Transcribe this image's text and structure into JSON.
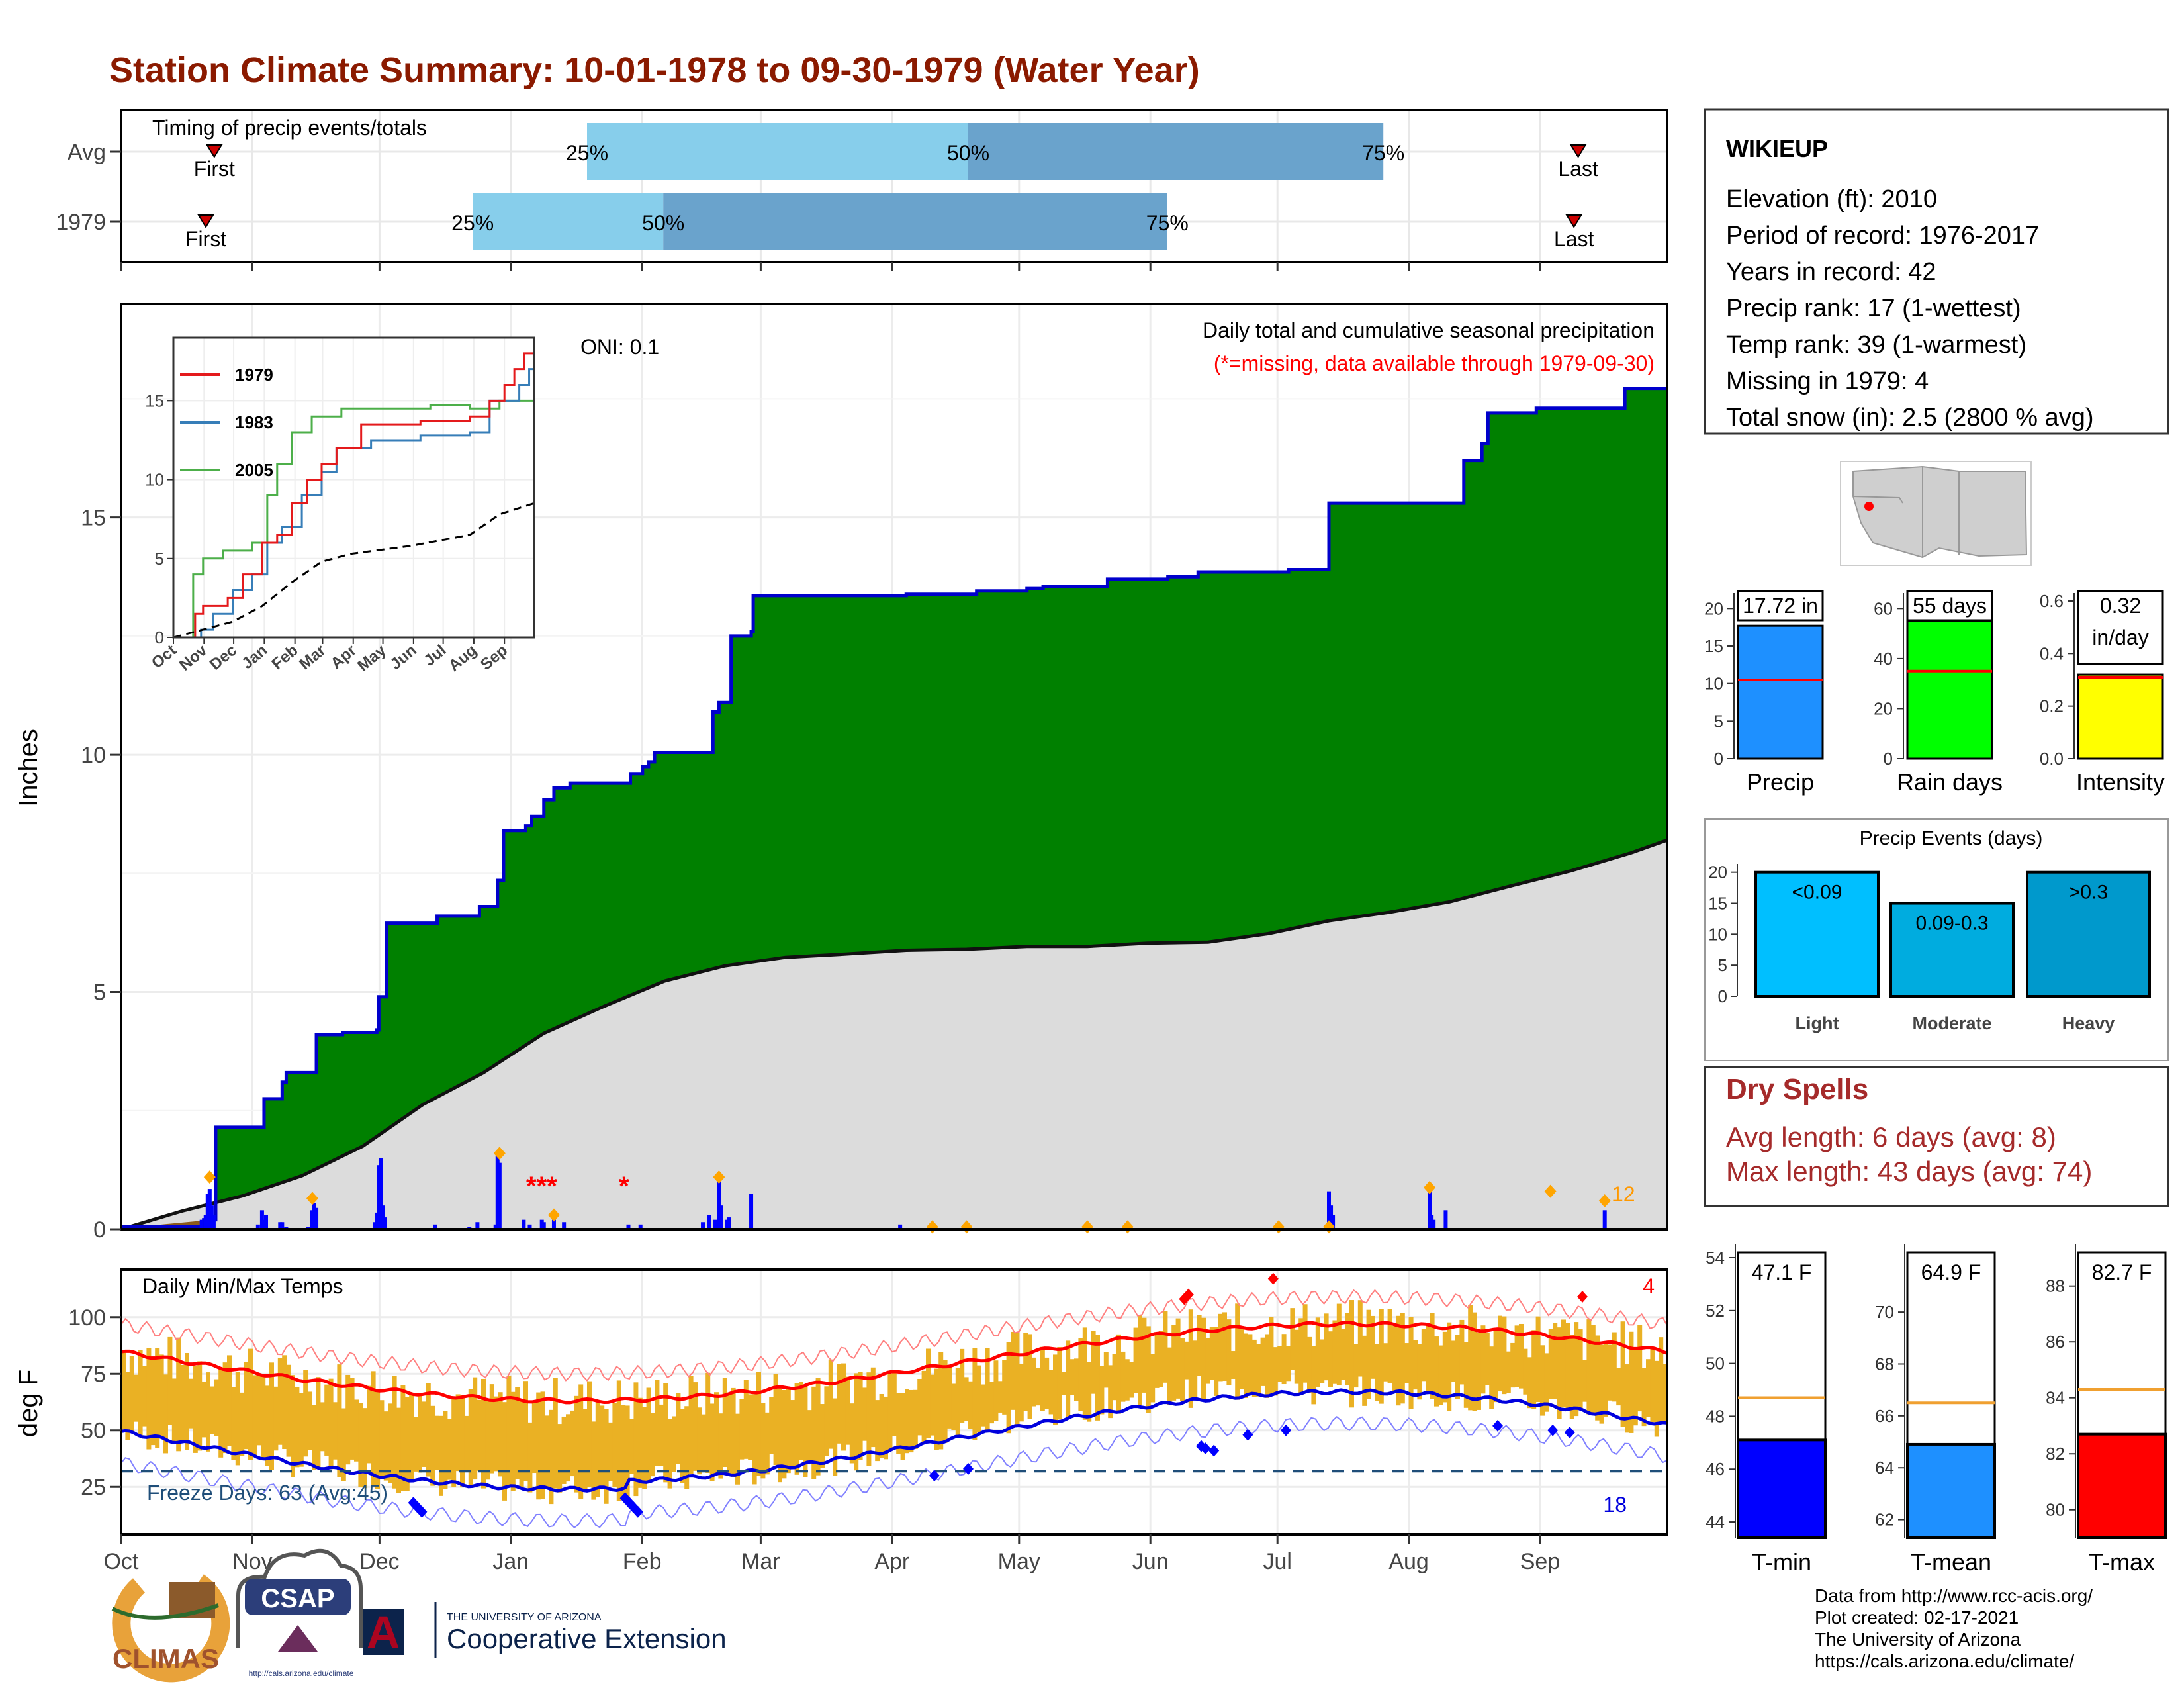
{
  "title": "Station Climate Summary: 10-01-1978 to 09-30-1979 (Water Year)",
  "months": [
    "Oct",
    "Nov",
    "Dec",
    "Jan",
    "Feb",
    "Mar",
    "Apr",
    "May",
    "Jun",
    "Jul",
    "Aug",
    "Sep"
  ],
  "timing": {
    "label": "Timing of precip events/totals",
    "rows": [
      {
        "name": "Avg",
        "first_day": 22,
        "p25": 110,
        "p50": 200,
        "p75": 298,
        "last_day": 344,
        "first_label": "First",
        "last_label": "Last",
        "p25_label": "25%",
        "p50_label": "50%",
        "p75_label": "75%"
      },
      {
        "name": "1979",
        "first_day": 20,
        "p25": 83,
        "p50": 128,
        "p75": 247,
        "last_day": 343,
        "first_label": "First",
        "last_label": "Last",
        "p25_label": "25%",
        "p50_label": "50%",
        "p75_label": "75%"
      }
    ]
  },
  "main_chart": {
    "ylabel": "Inches",
    "ylim": [
      0,
      19.5
    ],
    "yticks": [
      0,
      5,
      10,
      15
    ],
    "oni": "ONI: 0.1",
    "subtitle": "Daily total and cumulative seasonal precipitation",
    "missing_note": "(*=missing, data available through 1979-09-30)",
    "missing_count": "12"
  },
  "inset": {
    "yticks": [
      0,
      5,
      10,
      15
    ],
    "xticks": [
      "Oct",
      "Nov",
      "Dec",
      "Jan",
      "Feb",
      "Mar",
      "Apr",
      "May",
      "Jun",
      "Jul",
      "Aug",
      "Sep"
    ],
    "legend": [
      {
        "name": "1979",
        "color": "#e41a1c"
      },
      {
        "name": "1983",
        "color": "#377eb8"
      },
      {
        "name": "2005",
        "color": "#4daf4a"
      }
    ]
  },
  "temp_chart": {
    "ylabel": "deg F",
    "label": "Daily Min/Max Temps",
    "yticks": [
      25,
      50,
      75,
      100
    ],
    "freeze_label": "Freeze Days: 63 (Avg:45)",
    "max_count": "4",
    "min_count": "18"
  },
  "station": {
    "name": "WIKIEUP",
    "lines": [
      "Elevation (ft): 2010",
      "Period of record: 1976-2017",
      "Years in record: 42",
      "Precip rank: 17 (1-wettest)",
      "Temp rank: 39 (1-warmest)",
      "Missing in 1979: 4",
      "Total snow (in): 2.5 (2800 % avg)"
    ]
  },
  "summary_bars": [
    {
      "label": "Precip",
      "value": 17.72,
      "value_label": "17.72 in",
      "avg": 10.5,
      "color": "#1e90ff",
      "ylim": [
        0,
        21
      ],
      "yticks": [
        0,
        5,
        10,
        15,
        20
      ]
    },
    {
      "label": "Rain days",
      "value": 55,
      "value_label": "55 days",
      "avg": 35,
      "color": "#00ff00",
      "ylim": [
        0,
        63
      ],
      "yticks": [
        0,
        20,
        40,
        60
      ]
    },
    {
      "label": "Intensity",
      "value": 0.32,
      "value_label": "0.32\nin/day",
      "avg": 0.31,
      "color": "#ffff00",
      "ylim": [
        0,
        0.6
      ],
      "yticks": [
        "0.0",
        "0.2",
        "0.4",
        "0.6"
      ]
    }
  ],
  "precip_events": {
    "title": "Precip Events (days)",
    "yticks": [
      0,
      5,
      10,
      15,
      20
    ],
    "bars": [
      {
        "category": "Light",
        "value": 20,
        "label": "<0.09",
        "color": "#00bfff"
      },
      {
        "category": "Moderate",
        "value": 15,
        "label": "0.09-0.3",
        "color": "#00acdf"
      },
      {
        "category": "Heavy",
        "value": 20,
        "label": ">0.3",
        "color": "#0099cc"
      }
    ]
  },
  "dry_spells": {
    "title": "Dry Spells",
    "avg_line": "Avg length: 6 days (avg: 8)",
    "max_line": "Max length: 43 days (avg: 74)"
  },
  "temp_bars": [
    {
      "label": "T-min",
      "value": 47.1,
      "value_label": "47.1 F",
      "avg": 48.7,
      "color": "#0000ff",
      "ylim": [
        43.4,
        54.2
      ],
      "yticks": [
        44,
        46,
        48,
        50,
        52,
        54
      ]
    },
    {
      "label": "T-mean",
      "value": 64.9,
      "value_label": "64.9 F",
      "avg": 66.5,
      "color": "#1e90ff",
      "ylim": [
        61.3,
        72.3
      ],
      "yticks": [
        62,
        64,
        66,
        68,
        70
      ]
    },
    {
      "label": "T-max",
      "value": 82.7,
      "value_label": "82.7 F",
      "avg": 84.3,
      "color": "#ff0000",
      "ylim": [
        79.0,
        89.2
      ],
      "yticks": [
        80,
        82,
        84,
        86,
        88
      ]
    }
  ],
  "footer": {
    "lines": [
      "Data from http://www.rcc-acis.org/",
      "Plot created: 02-17-2021",
      "The University of Arizona",
      "https://cals.arizona.edu/climate/"
    ]
  },
  "logos": {
    "climas": "CLIMAS",
    "csap": "CSAP",
    "csap_url": "http://cals.arizona.edu/climate",
    "ua_small": "THE UNIVERSITY OF ARIZONA",
    "ua_big": "Cooperative Extension"
  },
  "chart_data": [
    {
      "type": "area",
      "title": "Daily total and cumulative seasonal precipitation",
      "ylabel": "Inches",
      "ylim": [
        0,
        19.5
      ],
      "cumulative_1979_steps": [
        [
          0,
          0.05
        ],
        [
          41,
          0.2
        ],
        [
          47,
          2.15
        ],
        [
          70,
          2.15
        ],
        [
          71,
          2.75
        ],
        [
          80,
          3.1
        ],
        [
          82,
          3.3
        ],
        [
          95,
          3.3
        ],
        [
          97,
          4.1
        ],
        [
          109,
          4.1
        ],
        [
          110,
          4.15
        ],
        [
          127,
          4.2
        ],
        [
          128,
          4.9
        ],
        [
          132,
          6.45
        ],
        [
          156,
          6.45
        ],
        [
          157,
          6.6
        ],
        [
          175,
          6.6
        ],
        [
          178,
          6.8
        ],
        [
          187,
          7.35
        ],
        [
          190,
          8.4
        ],
        [
          201,
          8.5
        ],
        [
          204,
          8.7
        ],
        [
          210,
          9.05
        ],
        [
          215,
          9.3
        ],
        [
          223,
          9.4
        ],
        [
          250,
          9.4
        ],
        [
          253,
          9.6
        ],
        [
          259,
          9.75
        ],
        [
          262,
          9.85
        ],
        [
          265,
          10.05
        ],
        [
          290,
          10.05
        ],
        [
          294,
          10.9
        ],
        [
          297,
          11.1
        ],
        [
          303,
          12.5
        ],
        [
          313,
          12.6
        ],
        [
          314,
          13.35
        ],
        [
          380,
          13.35
        ],
        [
          390,
          13.38
        ],
        [
          425,
          13.45
        ],
        [
          450,
          13.5
        ],
        [
          458,
          13.55
        ],
        [
          490,
          13.7
        ],
        [
          520,
          13.75
        ],
        [
          535,
          13.85
        ],
        [
          575,
          13.85
        ],
        [
          580,
          13.9
        ],
        [
          599,
          13.9
        ],
        [
          600,
          15.3
        ],
        [
          666,
          15.3
        ],
        [
          667,
          16.2
        ],
        [
          676,
          16.55
        ],
        [
          679,
          17.2
        ],
        [
          702,
          17.2
        ],
        [
          703,
          17.3
        ],
        [
          746,
          17.3
        ],
        [
          747,
          17.72
        ],
        [
          768,
          17.72
        ]
      ],
      "normal_cumulative": [
        [
          0,
          0
        ],
        [
          30,
          0.35
        ],
        [
          60,
          0.7
        ],
        [
          90,
          1.1
        ],
        [
          120,
          1.75
        ],
        [
          150,
          2.6
        ],
        [
          180,
          3.3
        ],
        [
          210,
          4.1
        ],
        [
          240,
          4.7
        ],
        [
          270,
          5.2
        ],
        [
          300,
          5.55
        ],
        [
          330,
          5.7
        ],
        [
          360,
          5.8
        ],
        [
          390,
          5.85
        ],
        [
          420,
          5.9
        ],
        [
          450,
          5.93
        ],
        [
          480,
          5.96
        ],
        [
          510,
          6.0
        ],
        [
          540,
          6.05
        ],
        [
          570,
          6.2
        ],
        [
          600,
          6.5
        ],
        [
          630,
          6.65
        ],
        [
          660,
          6.9
        ],
        [
          690,
          7.2
        ],
        [
          720,
          7.55
        ],
        [
          750,
          7.9
        ],
        [
          768,
          8.2
        ]
      ],
      "daily_bars": [
        [
          40,
          0.2
        ],
        [
          42,
          0.3
        ],
        [
          43,
          0.75
        ],
        [
          44,
          0.85
        ],
        [
          45,
          0.5
        ],
        [
          46,
          0.3
        ],
        [
          68,
          0.1
        ],
        [
          70,
          0.4
        ],
        [
          71,
          0.2
        ],
        [
          72,
          0.3
        ],
        [
          79,
          0.15
        ],
        [
          80,
          0.15
        ],
        [
          82,
          0.05
        ],
        [
          93,
          0.05
        ],
        [
          95,
          0.4
        ],
        [
          96,
          0.55
        ],
        [
          97,
          0.45
        ],
        [
          126,
          0.15
        ],
        [
          127,
          0.35
        ],
        [
          128,
          1.35
        ],
        [
          129,
          1.5
        ],
        [
          130,
          0.5
        ],
        [
          131,
          0.25
        ],
        [
          156,
          0.1
        ],
        [
          173,
          0.05
        ],
        [
          177,
          0.15
        ],
        [
          186,
          0.1
        ],
        [
          187,
          1.55
        ],
        [
          188,
          1.4
        ],
        [
          200,
          0.2
        ],
        [
          203,
          0.1
        ],
        [
          209,
          0.2
        ],
        [
          210,
          0.15
        ],
        [
          215,
          0.2
        ],
        [
          220,
          0.15
        ],
        [
          252,
          0.1
        ],
        [
          258,
          0.1
        ],
        [
          289,
          0.15
        ],
        [
          292,
          0.3
        ],
        [
          295,
          0.2
        ],
        [
          297,
          1.0
        ],
        [
          298,
          0.5
        ],
        [
          301,
          0.2
        ],
        [
          302,
          0.25
        ],
        [
          313,
          0.75
        ],
        [
          387,
          0.1
        ],
        [
          600,
          0.8
        ],
        [
          601,
          0.5
        ],
        [
          602,
          0.3
        ],
        [
          650,
          0.8
        ],
        [
          651,
          0.3
        ],
        [
          652,
          0.2
        ],
        [
          658,
          0.4
        ],
        [
          737,
          0.4
        ]
      ]
    },
    {
      "type": "line",
      "title": "Daily Min/Max Temps",
      "ylabel": "deg F",
      "freeze_line": 32
    }
  ]
}
